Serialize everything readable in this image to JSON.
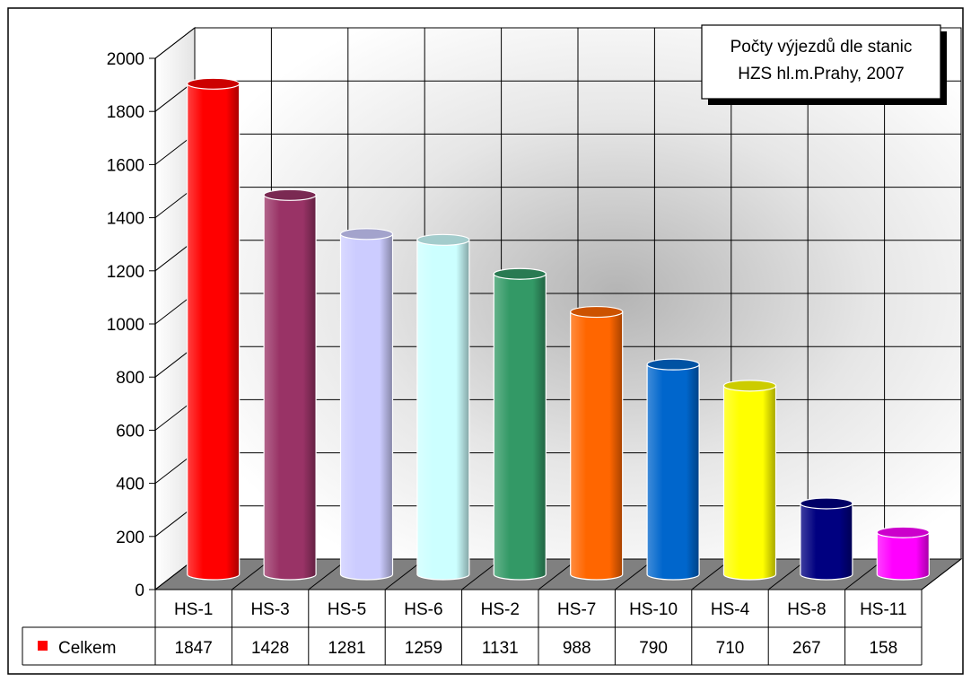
{
  "chart_data": {
    "type": "bar",
    "title": "Počty výjezdů dle stanic HZS hl.m.Prahy, 2007",
    "title_lines": [
      "Počty výjezdů dle stanic",
      "HZS hl.m.Prahy, 2007"
    ],
    "categories": [
      "HS-1",
      "HS-3",
      "HS-5",
      "HS-6",
      "HS-2",
      "HS-7",
      "HS-10",
      "HS-4",
      "HS-8",
      "HS-11"
    ],
    "series": [
      {
        "name": "Celkem",
        "values": [
          1847,
          1428,
          1281,
          1259,
          1131,
          988,
          790,
          710,
          267,
          158
        ],
        "legend_color": "#ff0000"
      }
    ],
    "bar_colors": [
      "#ff0000",
      "#993366",
      "#ccccff",
      "#ccffff",
      "#339966",
      "#ff6600",
      "#0066cc",
      "#ffff00",
      "#000080",
      "#ff00ff"
    ],
    "ylim": [
      0,
      2000
    ],
    "yticks": [
      0,
      200,
      400,
      600,
      800,
      1000,
      1200,
      1400,
      1600,
      1800,
      2000
    ],
    "grid": true,
    "data_table": true,
    "title_placement": "top-right",
    "xlabel": "",
    "ylabel": ""
  }
}
